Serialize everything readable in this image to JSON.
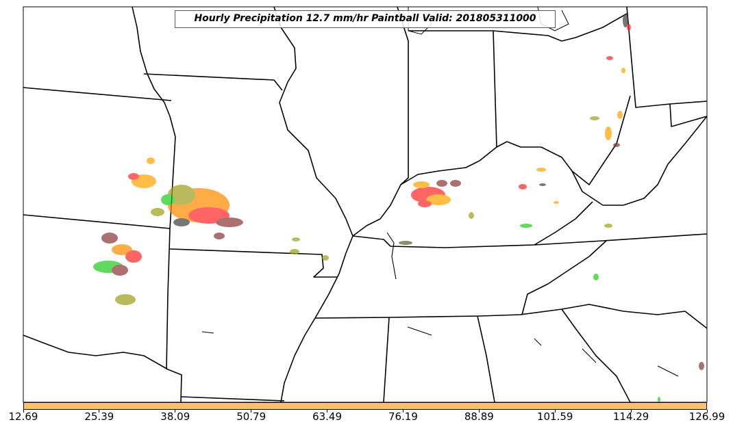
{
  "title": "Hourly Precipitation 12.7 mm/hr Paintball Valid: 201805311000",
  "colorbar": {
    "color": "#ffc266",
    "ticks": [
      "12.69",
      "25.39",
      "38.09",
      "50.79",
      "63.49",
      "76.19",
      "88.89",
      "101.59",
      "114.29",
      "126.99"
    ]
  },
  "paintball_colors": [
    "#ff8c00",
    "#ffa500",
    "#ff2a2a",
    "#22cc22",
    "#8b3a3a",
    "#a0a020",
    "#556b2f",
    "#444444"
  ]
}
